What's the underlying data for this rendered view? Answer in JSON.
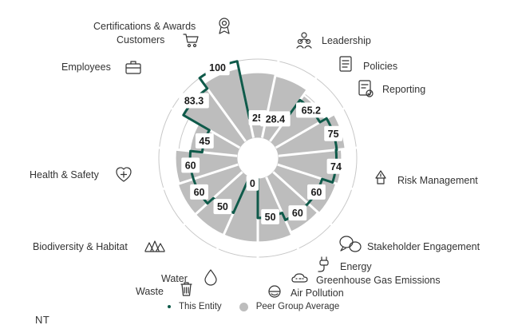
{
  "chart_data": {
    "type": "radial-bar",
    "categories": [
      "Leadership",
      "Policies",
      "Reporting",
      "Risk Management",
      "Stakeholder Engagement",
      "Energy",
      "Greenhouse Gas Emissions",
      "Air Pollution",
      "Waste",
      "Water",
      "Biodiversity & Habitat",
      "Health & Safety",
      "Employees",
      "Customers",
      "Certifications & Awards"
    ],
    "series": [
      {
        "name": "This Entity",
        "values": [
          25,
          28.4,
          65.2,
          75,
          74,
          60,
          60,
          50,
          0,
          50,
          60,
          60,
          45,
          83.3,
          100
        ]
      },
      {
        "name": "Peer Group Average",
        "values": [
          82,
          80,
          72,
          85,
          80,
          78,
          76,
          80,
          80,
          80,
          80,
          78,
          60,
          85,
          90
        ]
      }
    ],
    "value_labels": [
      "25",
      "28.4",
      "65.2",
      "75",
      "74",
      "60",
      "60",
      "50",
      "0",
      "50",
      "60",
      "60",
      "45",
      "83.3",
      "100"
    ],
    "ylim": [
      0,
      100
    ],
    "legend": "bottom",
    "colors": {
      "entity": "#0f5a4a",
      "peer": "#bdbdbd",
      "grid": "#c8c8c8"
    }
  },
  "corner_text": "NT"
}
